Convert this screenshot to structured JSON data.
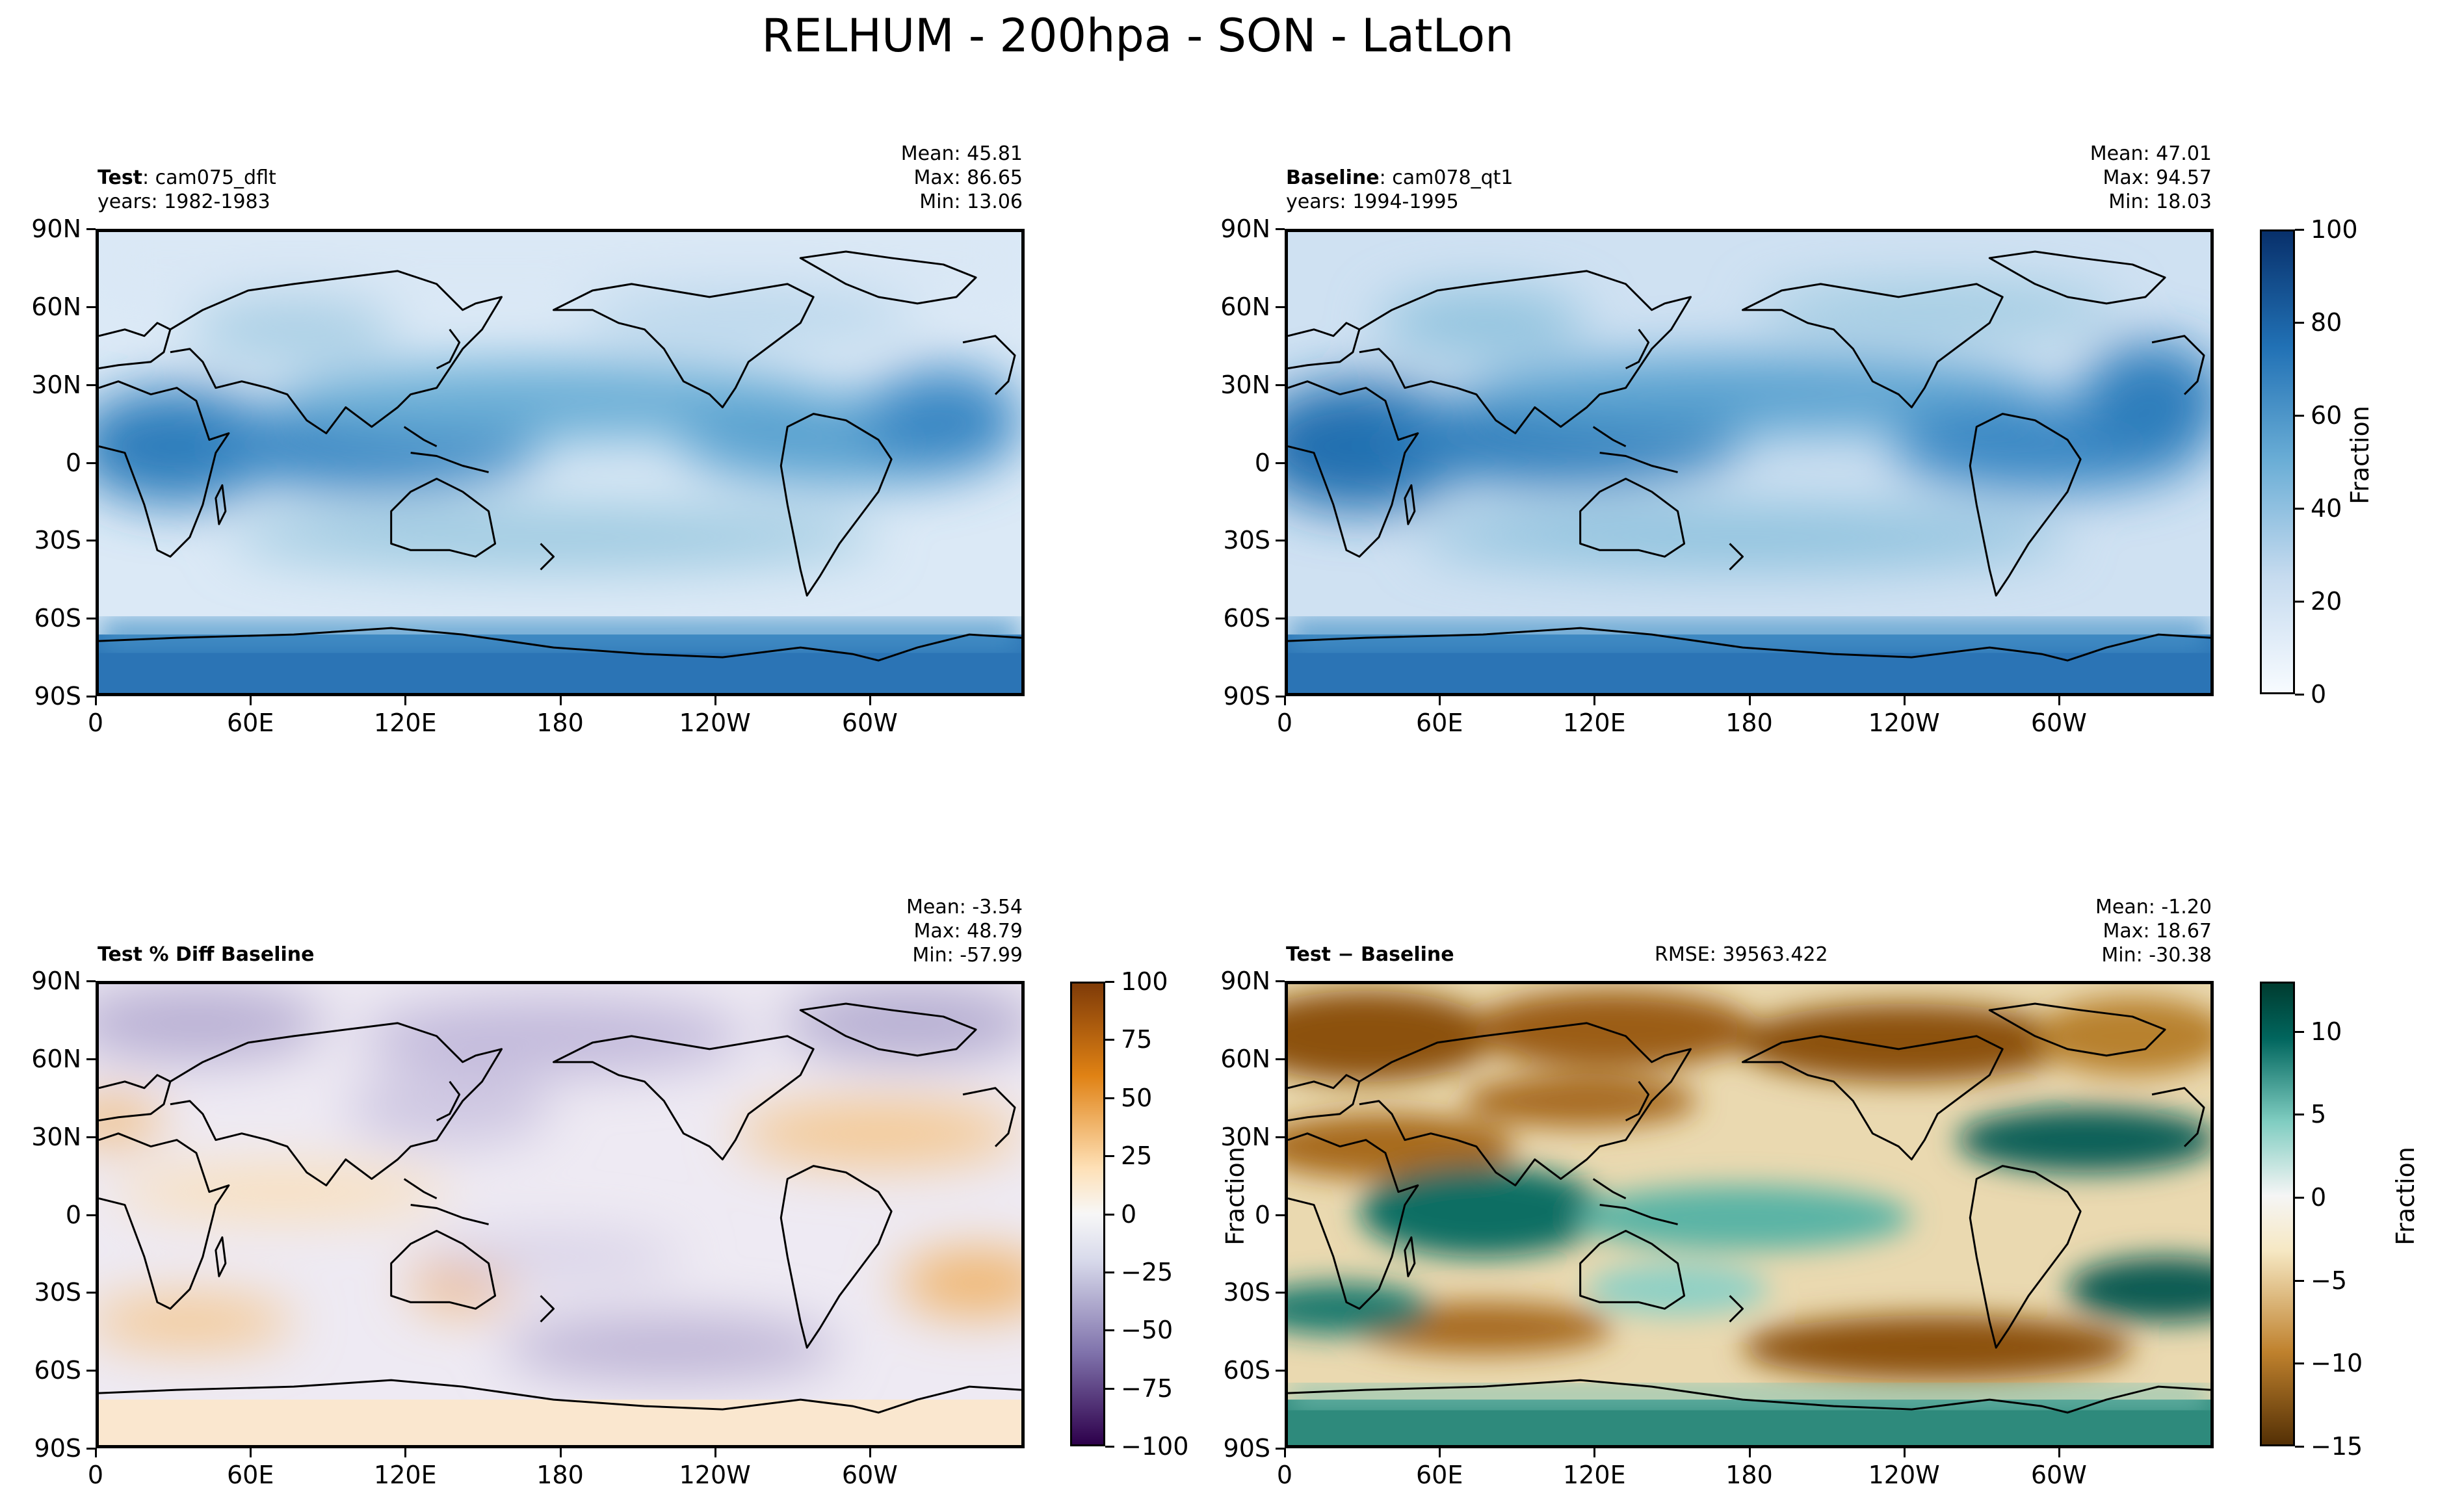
{
  "title": "RELHUM - 200hpa - SON - LatLon",
  "chart_data": [
    {
      "type": "heatmap",
      "panel": "top-left",
      "label_bold": "Test",
      "label_rest": ": cam075_dflt",
      "years": "years: 1982-1983",
      "stats": {
        "mean": "Mean: 45.81",
        "max": "Max: 86.65",
        "min": "Min: 13.06"
      },
      "lat_ticks": [
        "90N",
        "60N",
        "30N",
        "0",
        "30S",
        "60S",
        "90S"
      ],
      "lon_ticks": [
        "0",
        "60E",
        "120E",
        "180",
        "120W",
        "60W"
      ],
      "colormap": "Blues",
      "vmin": 0,
      "vmax": 100
    },
    {
      "type": "heatmap",
      "panel": "top-right",
      "label_bold": "Baseline",
      "label_rest": ": cam078_qt1",
      "years": "years: 1994-1995",
      "stats": {
        "mean": "Mean: 47.01",
        "max": "Max: 94.57",
        "min": "Min: 18.03"
      },
      "lat_ticks": [
        "90N",
        "60N",
        "30N",
        "0",
        "30S",
        "60S",
        "90S"
      ],
      "lon_ticks": [
        "0",
        "60E",
        "120E",
        "180",
        "120W",
        "60W"
      ],
      "colormap": "Blues",
      "vmin": 0,
      "vmax": 100,
      "colorbar": {
        "ticks": [
          "100",
          "80",
          "60",
          "40",
          "20",
          "0"
        ],
        "label": "Fraction"
      }
    },
    {
      "type": "heatmap",
      "panel": "bottom-left",
      "label_bold": "Test % Diff Baseline",
      "stats": {
        "mean": "Mean: -3.54",
        "max": "Max: 48.79",
        "min": "Min: -57.99"
      },
      "lat_ticks": [
        "90N",
        "60N",
        "30N",
        "0",
        "30S",
        "60S",
        "90S"
      ],
      "lon_ticks": [
        "0",
        "60E",
        "120E",
        "180",
        "120W",
        "60W"
      ],
      "colormap": "PuOr_r",
      "vmin": -100,
      "vmax": 100,
      "colorbar": {
        "ticks": [
          "100",
          "75",
          "50",
          "25",
          "0",
          "−25",
          "−50",
          "−75",
          "−100"
        ],
        "label": "Fraction"
      }
    },
    {
      "type": "heatmap",
      "panel": "bottom-right",
      "label_bold": "Test − Baseline",
      "rmse": "RMSE: 39563.422",
      "stats": {
        "mean": "Mean: -1.20",
        "max": "Max: 18.67",
        "min": "Min: -30.38"
      },
      "lat_ticks": [
        "90N",
        "60N",
        "30N",
        "0",
        "30S",
        "60S",
        "90S"
      ],
      "lon_ticks": [
        "0",
        "60E",
        "120E",
        "180",
        "120W",
        "60W"
      ],
      "colormap": "BrBG",
      "vmin": -15,
      "vmax": 13,
      "colorbar": {
        "ticks": [
          "10",
          "5",
          "0",
          "−5",
          "−10",
          "−15"
        ],
        "label": "Fraction"
      }
    }
  ],
  "colors": {
    "blues_light": "#f2f7fd",
    "blues_mid": "#6aaed6",
    "blues_dark": "#08306b",
    "puor_orange": "#d9822b",
    "puor_purple": "#54278f",
    "brbg_brown": "#8c510a",
    "brbg_teal": "#01665e"
  }
}
